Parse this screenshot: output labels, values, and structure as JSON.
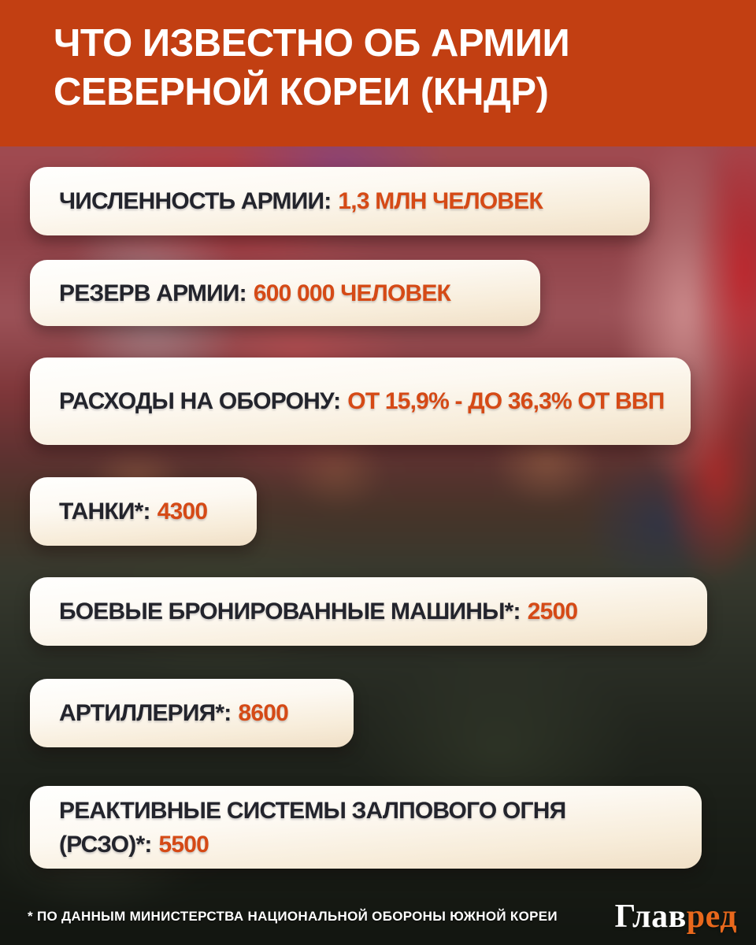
{
  "header": {
    "title_line1": "ЧТО ИЗВЕСТНО ОБ АРМИИ",
    "title_line2": "СЕВЕРНОЙ КОРЕИ (КНДР)"
  },
  "cards": [
    {
      "label": "ЧИСЛЕННОСТЬ АРМИИ:",
      "value": "1,3 МЛН ЧЕЛОВЕК"
    },
    {
      "label": "РЕЗЕРВ АРМИИ:",
      "value": "600 000 ЧЕЛОВЕК"
    },
    {
      "label": "РАСХОДЫ НА ОБОРОНУ:",
      "value": "ОТ 15,9% - ДО 36,3% ОТ ВВП"
    },
    {
      "label": "ТАНКИ*:",
      "value": "4300"
    },
    {
      "label": "БОЕВЫЕ БРОНИРОВАННЫЕ МАШИНЫ*:",
      "value": "2500"
    },
    {
      "label": "АРТИЛЛЕРИЯ*:",
      "value": "8600"
    },
    {
      "label": "РЕАКТИВНЫЕ СИСТЕМЫ ЗАЛПОВОГО ОГНЯ (РСЗО)*:",
      "value": "5500"
    }
  ],
  "footer": {
    "note": "* ПО ДАННЫМ МИНИСТЕРСТВА НАЦИОНАЛЬНОЙ ОБОРОНЫ ЮЖНОЙ КОРЕИ",
    "logo_part1": "Глав",
    "logo_part2": "ред"
  },
  "colors": {
    "header_background": "#c23f12",
    "card_tab_top": "#f6871f",
    "card_tab_bottom": "#dd4710",
    "card_background_top": "#fffffe",
    "card_background_bottom": "#f0dfc6",
    "label_text": "#23242c",
    "value_text": "#d54a16",
    "logo_accent": "#e8681c"
  }
}
